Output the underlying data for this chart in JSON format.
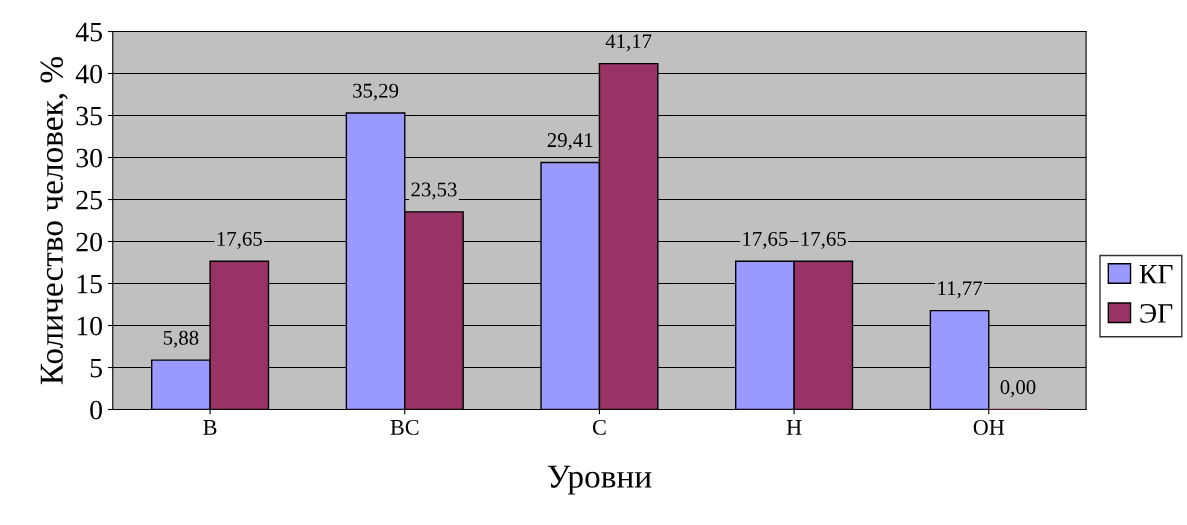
{
  "chart_data": {
    "type": "bar",
    "xlabel": "Уровни",
    "ylabel": "Количество человек, %",
    "categories": [
      "В",
      "ВС",
      "С",
      "Н",
      "ОН"
    ],
    "series": [
      {
        "name": "КГ",
        "color": "#9999ff",
        "values": [
          5.88,
          35.29,
          29.41,
          17.65,
          11.77
        ],
        "value_labels": [
          "5,88",
          "35,29",
          "29,41",
          "17,65",
          "11,77"
        ]
      },
      {
        "name": "ЭГ",
        "color": "#993366",
        "values": [
          17.65,
          23.53,
          41.17,
          17.65,
          0.0
        ],
        "value_labels": [
          "17,65",
          "23,53",
          "41,17",
          "17,65",
          "0,00"
        ]
      }
    ],
    "ylim": [
      0,
      45
    ],
    "yticks": [
      0,
      5,
      10,
      15,
      20,
      25,
      30,
      35,
      40,
      45
    ],
    "grid": "y",
    "legend": "right"
  }
}
